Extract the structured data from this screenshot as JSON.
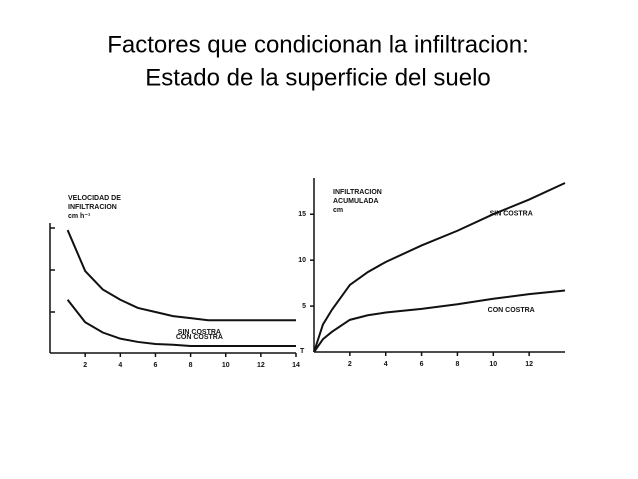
{
  "title": [
    "Factores que condicionan la infiltracion:",
    "Estado de la superficie del suelo"
  ],
  "chart_data": [
    {
      "type": "line",
      "ylabel": [
        "VELOCIDAD DE",
        "INFILTRACION",
        "cm h⁻¹"
      ],
      "xlabel": "T",
      "x": [
        1,
        2,
        3,
        4,
        5,
        6,
        7,
        8,
        9,
        10,
        11,
        12,
        13,
        14
      ],
      "xlim": [
        0.68,
        14
      ],
      "ylim": [
        0,
        3.05
      ],
      "xticks": [
        2,
        4,
        6,
        8,
        10,
        12,
        14
      ],
      "series": [
        {
          "name": "SIN COSTRA",
          "color": "#111111",
          "values": [
            3.0,
            2.0,
            1.55,
            1.3,
            1.1,
            1.0,
            0.9,
            0.85,
            0.8,
            0.8,
            0.8,
            0.8,
            0.8,
            0.8
          ]
        },
        {
          "name": "CON COSTRA",
          "color": "#111111",
          "values": [
            1.3,
            0.75,
            0.5,
            0.35,
            0.27,
            0.22,
            0.2,
            0.17,
            0.17,
            0.17,
            0.17,
            0.17,
            0.17,
            0.17
          ]
        }
      ]
    },
    {
      "type": "line",
      "ylabel": [
        "INFILTRACION",
        "ACUMULADA",
        "cm"
      ],
      "x": [
        0,
        0.5,
        1,
        2,
        3,
        4,
        6,
        8,
        10,
        12,
        14
      ],
      "xlim": [
        0,
        14
      ],
      "ylim": [
        0,
        18.4
      ],
      "xticks": [
        2,
        4,
        6,
        8,
        10,
        12
      ],
      "yticks": [
        5,
        10,
        15
      ],
      "series": [
        {
          "name": "SIN COSTRA",
          "color": "#111111",
          "values": [
            0,
            3,
            4.6,
            7.3,
            8.7,
            9.8,
            11.6,
            13.2,
            15,
            16.6,
            18.4
          ]
        },
        {
          "name": "CON COSTRA",
          "color": "#111111",
          "values": [
            0,
            1.4,
            2.2,
            3.5,
            4,
            4.3,
            4.7,
            5.2,
            5.8,
            6.3,
            6.7
          ]
        }
      ]
    }
  ]
}
